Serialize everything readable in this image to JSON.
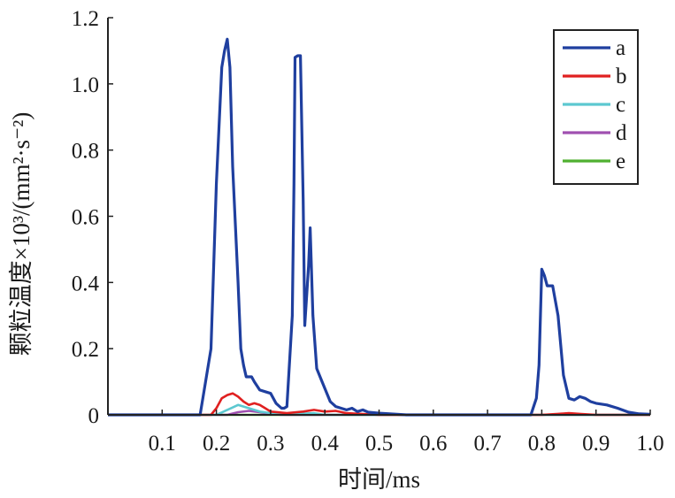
{
  "chart_data": {
    "type": "line",
    "xlabel": "时间/ms",
    "ylabel": "颗粒温度×10³/(mm²·s⁻²)",
    "xlim": [
      0,
      1.0
    ],
    "ylim": [
      0,
      1.2
    ],
    "x_ticks": [
      "0.1",
      "0.2",
      "0.3",
      "0.4",
      "0.5",
      "0.6",
      "0.7",
      "0.8",
      "0.9",
      "1.0"
    ],
    "y_ticks": [
      "0",
      "0.2",
      "0.4",
      "0.6",
      "0.8",
      "1.0",
      "1.2"
    ],
    "grid": false,
    "legend_position": "top-right",
    "series": [
      {
        "name": "a",
        "color": "#1f3f9f",
        "points": [
          [
            0,
            0
          ],
          [
            0.17,
            0
          ],
          [
            0.175,
            0.05
          ],
          [
            0.19,
            0.2
          ],
          [
            0.2,
            0.7
          ],
          [
            0.21,
            1.05
          ],
          [
            0.215,
            1.1
          ],
          [
            0.22,
            1.135
          ],
          [
            0.225,
            1.05
          ],
          [
            0.23,
            0.75
          ],
          [
            0.24,
            0.4
          ],
          [
            0.245,
            0.2
          ],
          [
            0.25,
            0.15
          ],
          [
            0.255,
            0.115
          ],
          [
            0.265,
            0.115
          ],
          [
            0.27,
            0.1
          ],
          [
            0.28,
            0.075
          ],
          [
            0.29,
            0.07
          ],
          [
            0.3,
            0.065
          ],
          [
            0.31,
            0.035
          ],
          [
            0.32,
            0.02
          ],
          [
            0.325,
            0.02
          ],
          [
            0.33,
            0.025
          ],
          [
            0.34,
            0.3
          ],
          [
            0.343,
            0.7
          ],
          [
            0.345,
            1.08
          ],
          [
            0.35,
            1.085
          ],
          [
            0.355,
            1.085
          ],
          [
            0.36,
            0.65
          ],
          [
            0.363,
            0.27
          ],
          [
            0.37,
            0.45
          ],
          [
            0.373,
            0.565
          ],
          [
            0.378,
            0.3
          ],
          [
            0.385,
            0.14
          ],
          [
            0.395,
            0.1
          ],
          [
            0.41,
            0.04
          ],
          [
            0.42,
            0.025
          ],
          [
            0.43,
            0.02
          ],
          [
            0.44,
            0.015
          ],
          [
            0.45,
            0.02
          ],
          [
            0.46,
            0.01
          ],
          [
            0.47,
            0.015
          ],
          [
            0.48,
            0.008
          ],
          [
            0.5,
            0.005
          ],
          [
            0.55,
            0
          ],
          [
            0.78,
            0
          ],
          [
            0.79,
            0.05
          ],
          [
            0.795,
            0.15
          ],
          [
            0.8,
            0.44
          ],
          [
            0.805,
            0.42
          ],
          [
            0.81,
            0.39
          ],
          [
            0.82,
            0.39
          ],
          [
            0.83,
            0.3
          ],
          [
            0.84,
            0.12
          ],
          [
            0.85,
            0.05
          ],
          [
            0.86,
            0.045
          ],
          [
            0.87,
            0.055
          ],
          [
            0.88,
            0.05
          ],
          [
            0.89,
            0.04
          ],
          [
            0.9,
            0.035
          ],
          [
            0.92,
            0.03
          ],
          [
            0.94,
            0.02
          ],
          [
            0.96,
            0.008
          ],
          [
            0.98,
            0.003
          ],
          [
            1.0,
            0.002
          ]
        ]
      },
      {
        "name": "b",
        "color": "#e02020",
        "points": [
          [
            0,
            0
          ],
          [
            0.19,
            0
          ],
          [
            0.2,
            0.02
          ],
          [
            0.21,
            0.05
          ],
          [
            0.22,
            0.06
          ],
          [
            0.23,
            0.065
          ],
          [
            0.24,
            0.055
          ],
          [
            0.25,
            0.04
          ],
          [
            0.26,
            0.03
          ],
          [
            0.27,
            0.035
          ],
          [
            0.28,
            0.03
          ],
          [
            0.29,
            0.02
          ],
          [
            0.3,
            0.01
          ],
          [
            0.33,
            0.005
          ],
          [
            0.36,
            0.01
          ],
          [
            0.38,
            0.015
          ],
          [
            0.4,
            0.01
          ],
          [
            0.42,
            0.012
          ],
          [
            0.44,
            0.005
          ],
          [
            0.5,
            0
          ],
          [
            0.8,
            0
          ],
          [
            0.83,
            0.003
          ],
          [
            0.85,
            0.005
          ],
          [
            0.87,
            0.003
          ],
          [
            0.9,
            0
          ],
          [
            1.0,
            0
          ]
        ]
      },
      {
        "name": "c",
        "color": "#5cc8d0",
        "points": [
          [
            0,
            0
          ],
          [
            0.2,
            0
          ],
          [
            0.22,
            0.015
          ],
          [
            0.24,
            0.03
          ],
          [
            0.26,
            0.02
          ],
          [
            0.28,
            0.01
          ],
          [
            0.3,
            0.005
          ],
          [
            0.32,
            0
          ],
          [
            0.38,
            0.005
          ],
          [
            0.4,
            0
          ],
          [
            1.0,
            0
          ]
        ]
      },
      {
        "name": "d",
        "color": "#a050b0",
        "points": [
          [
            0,
            0
          ],
          [
            0.22,
            0
          ],
          [
            0.24,
            0.008
          ],
          [
            0.26,
            0.012
          ],
          [
            0.28,
            0.008
          ],
          [
            0.3,
            0.003
          ],
          [
            0.32,
            0
          ],
          [
            1.0,
            0
          ]
        ]
      },
      {
        "name": "e",
        "color": "#50b030",
        "points": [
          [
            0,
            0
          ],
          [
            1.0,
            0
          ]
        ]
      }
    ]
  }
}
